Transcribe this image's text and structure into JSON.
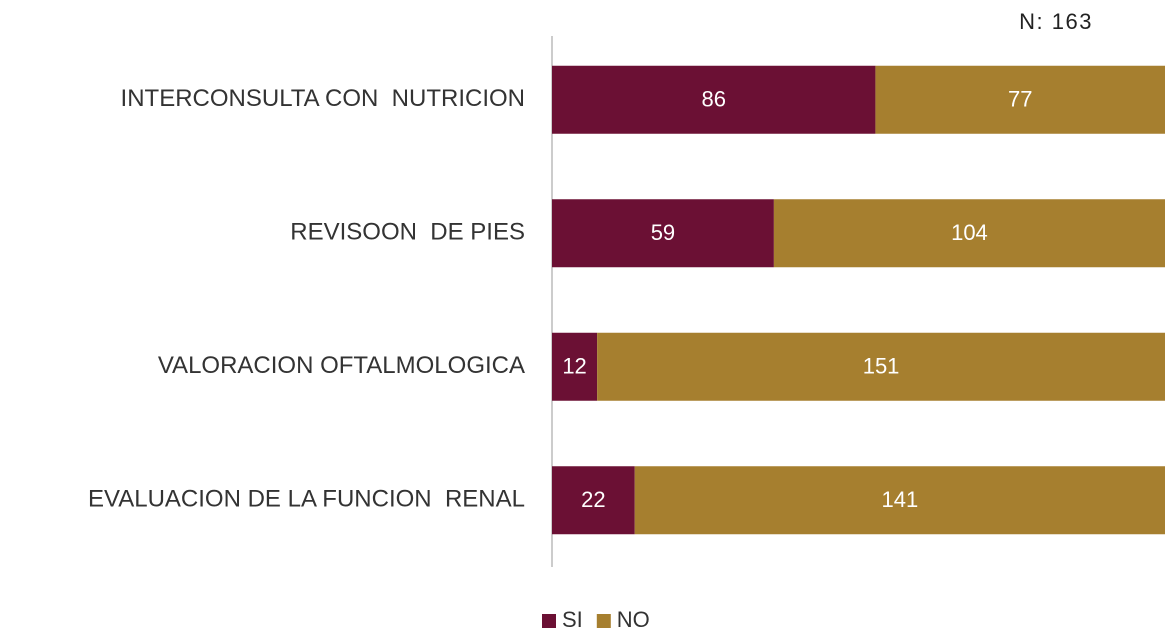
{
  "chart_data": {
    "type": "stacked-bar-horizontal",
    "annotation": "N: 163",
    "categories": [
      "INTERCONSULTA CON  NUTRICION",
      "REVISOON  DE PIES",
      "VALORACION OFTALMOLOGICA",
      "EVALUACION DE LA FUNCION  RENAL"
    ],
    "series": [
      {
        "name": "SI",
        "color": "#6b1034",
        "values": [
          86,
          59,
          12,
          22
        ]
      },
      {
        "name": "NO",
        "color": "#a67f2f",
        "values": [
          77,
          104,
          151,
          141
        ]
      }
    ],
    "xlim": [
      0,
      163
    ],
    "legend": "bottom"
  }
}
